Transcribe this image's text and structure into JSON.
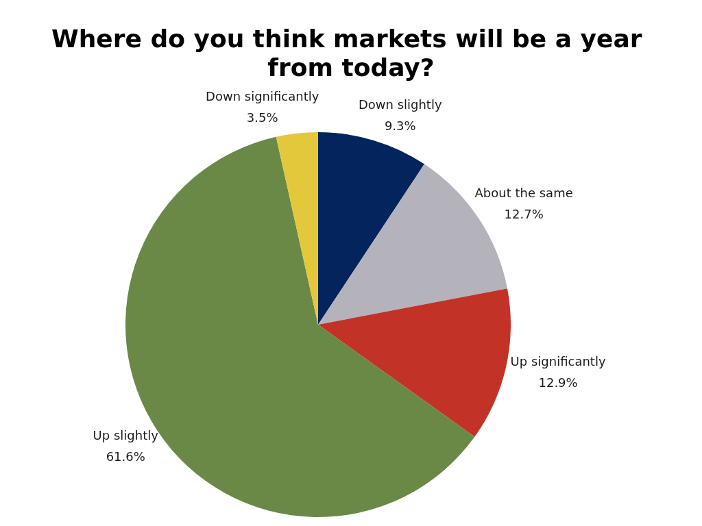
{
  "chart_data": {
    "type": "pie",
    "title": "Where do you think markets will be a year from today?",
    "categories": [
      "Down slightly",
      "About the same",
      "Up significantly",
      "Up slightly",
      "Down significantly"
    ],
    "values": [
      9.3,
      12.7,
      12.9,
      61.6,
      3.5
    ],
    "value_labels": [
      "9.3%",
      "12.7%",
      "12.9%",
      "61.6%",
      "3.5%"
    ],
    "colors": [
      "#03245c",
      "#b4b3bc",
      "#c23226",
      "#6a8946",
      "#e4c83c"
    ]
  }
}
